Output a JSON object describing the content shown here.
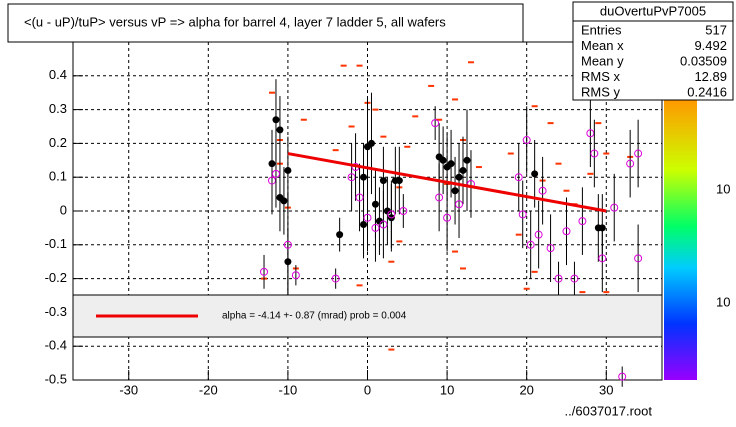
{
  "chart_data": {
    "type": "scatter",
    "title": "<(u - uP)/tuP> versus   vP => alpha for barrel 4, layer 7 ladder 5, all wafers",
    "stats": {
      "name": "duOvertuPvP7005",
      "labels": [
        "Entries",
        "Mean x",
        "Mean y",
        "RMS x",
        "RMS y"
      ],
      "values": [
        "517",
        "9.492",
        "0.03509",
        "12.89",
        "0.2416"
      ]
    },
    "fit_label": "alpha =    -4.14 +-   0.87 (mrad) prob = 0.004",
    "footer": "../6037017.root",
    "palette_labels": [
      "10",
      "10"
    ],
    "xlim": [
      -37,
      37
    ],
    "ylim": [
      -0.5,
      0.5
    ],
    "xticks": [
      -30,
      -20,
      -10,
      0,
      10,
      20,
      30
    ],
    "yticks": [
      -0.5,
      -0.4,
      -0.3,
      -0.2,
      -0.1,
      0,
      0.1,
      0.2,
      0.3,
      0.4
    ],
    "grid": true,
    "series": [
      {
        "marker": "dash",
        "color": "#ff3300",
        "x": [
          -13,
          -12,
          -11,
          -10,
          -9,
          -8,
          -4,
          -3,
          -2,
          -1,
          0,
          1,
          2,
          3,
          4,
          5,
          6,
          8,
          9,
          10,
          11,
          12,
          13,
          14,
          18,
          19,
          20,
          21,
          22,
          23,
          24,
          25,
          26,
          27,
          28,
          29,
          30,
          31,
          33,
          34,
          3,
          -3,
          -1,
          11,
          12,
          21,
          26,
          30,
          4,
          -11
        ],
        "values": [
          -0.2,
          0.35,
          0.21,
          0.01,
          -0.17,
          0.27,
          0.18,
          0.43,
          0.25,
          -0.22,
          0.32,
          0.3,
          0.22,
          -0.15,
          0.07,
          0.19,
          0.28,
          0.37,
          0.27,
          0.08,
          -0.12,
          0.21,
          0.44,
          0.13,
          0.17,
          -0.07,
          -0.23,
          -0.18,
          0.09,
          0.26,
          0.14,
          0.06,
          0.02,
          -0.24,
          0.11,
          0.26,
          -0.24,
          0.42,
          0.16,
          -0.28,
          -0.41,
          -0.29,
          0.43,
          0.33,
          -0.17,
          0.31,
          -0.25,
          0.17,
          -0.09,
          0.14
        ]
      },
      {
        "marker": "dot",
        "color": "#000000",
        "x": [
          -12,
          -11.5,
          -11,
          -11,
          -10.5,
          -10,
          -10,
          -3.5,
          -0.5,
          -0.5,
          0,
          0.5,
          1,
          1.5,
          2,
          2.5,
          3,
          3.5,
          4,
          9,
          9.5,
          10,
          10.5,
          11,
          11.5,
          12,
          12.5,
          21,
          29,
          29.5
        ],
        "values": [
          0.14,
          0.27,
          0.24,
          0.04,
          0.03,
          0.12,
          -0.15,
          -0.07,
          0.1,
          -0.04,
          0.19,
          0.2,
          0.02,
          -0.03,
          0.09,
          0,
          -0.02,
          0.09,
          0.09,
          0.16,
          0.15,
          0.13,
          0.14,
          0.06,
          0.1,
          0.12,
          0.15,
          0.11,
          -0.05,
          -0.05
        ],
        "errors": [
          0.1,
          0.12,
          0.1,
          0.1,
          0.1,
          0.1,
          0.1,
          0.05,
          0.1,
          0.1,
          0.15,
          0.15,
          0.1,
          0.1,
          0.1,
          0.1,
          0.1,
          0.1,
          0.1,
          0.1,
          0.1,
          0.1,
          0.1,
          0.1,
          0.1,
          0.1,
          0.15,
          0.1,
          0.1,
          0.1
        ]
      },
      {
        "marker": "circle",
        "color": "#dd00dd",
        "x": [
          -13,
          -12,
          -11.5,
          -10,
          -9,
          -4,
          -2,
          -1.5,
          -1,
          0,
          1,
          2,
          3,
          4.5,
          8.5,
          9,
          10,
          11.5,
          13,
          19,
          19.5,
          20,
          20.5,
          21.5,
          22,
          23,
          24,
          25,
          26,
          27,
          28,
          28.5,
          29.5,
          31,
          32,
          33,
          34,
          34
        ],
        "values": [
          -0.18,
          0.09,
          0.11,
          -0.1,
          -0.19,
          -0.2,
          0.1,
          0.13,
          0.04,
          -0.02,
          -0.05,
          -0.04,
          -0.01,
          0,
          0.26,
          0.04,
          -0.02,
          0.02,
          0.08,
          0.1,
          -0.01,
          0.21,
          -0.1,
          -0.07,
          0.06,
          -0.11,
          -0.2,
          -0.06,
          -0.2,
          -0.03,
          0.23,
          0.17,
          -0.14,
          0.01,
          -0.49,
          0.14,
          -0.14,
          0.17
        ],
        "errors": [
          0.05,
          0.1,
          0.1,
          0.15,
          0.03,
          0.03,
          0.1,
          0.1,
          0.1,
          0.1,
          0.1,
          0.1,
          0.1,
          0.05,
          0.05,
          0.1,
          0.1,
          0.1,
          0.1,
          0.1,
          0.1,
          0.1,
          0.1,
          0.1,
          0.1,
          0.1,
          0.05,
          0.1,
          0.05,
          0.1,
          0.1,
          0.1,
          0.1,
          0.1,
          0.03,
          0.1,
          0.1,
          0.1
        ]
      },
      {
        "marker": "line",
        "color": "#ee0000",
        "x": [
          -10,
          30
        ],
        "values": [
          0.17,
          0.0
        ]
      }
    ]
  }
}
